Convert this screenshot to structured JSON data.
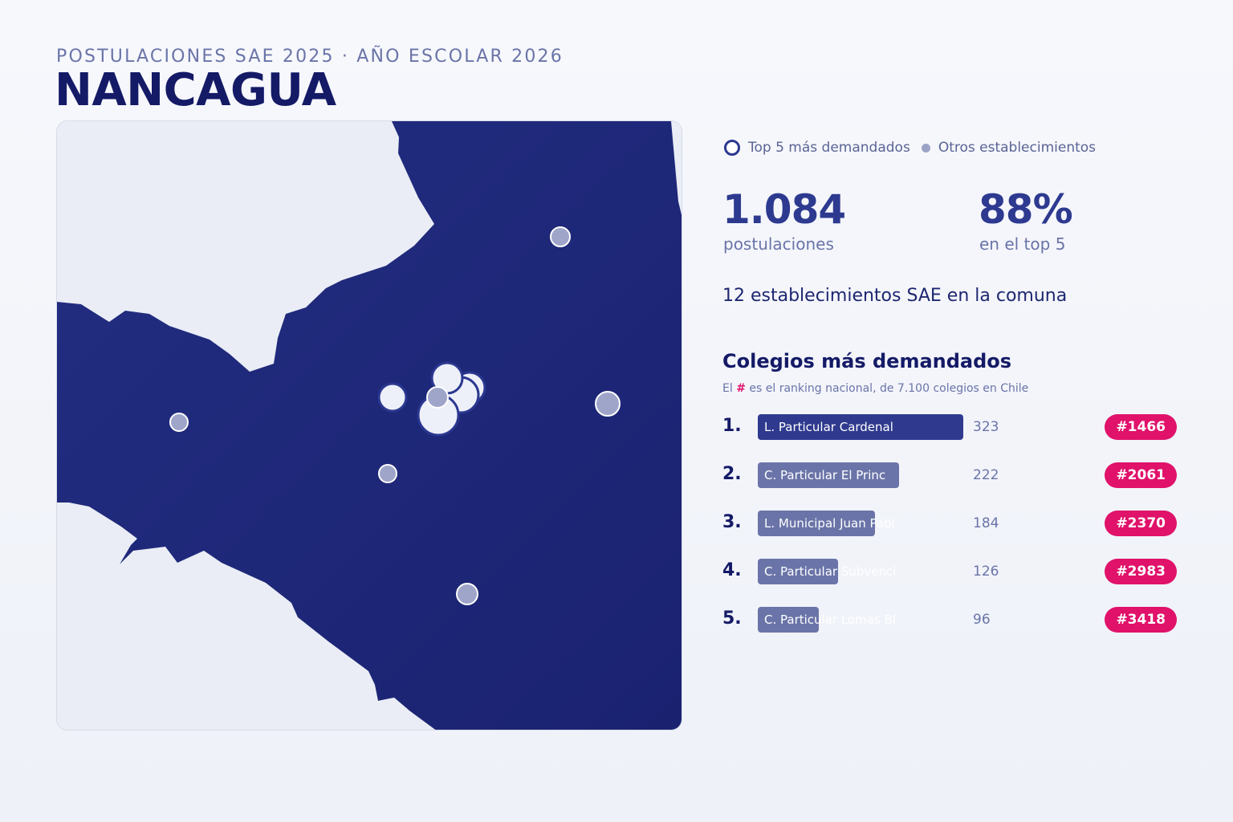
{
  "header": {
    "subtitle": "POSTULACIONES SAE 2025 · AÑO ESCOLAR 2026",
    "title": "NANCAGUA"
  },
  "legend": {
    "top5_label": "Top 5 más demandados",
    "others_label": "Otros establecimientos"
  },
  "stats": {
    "applications_value": "1.084",
    "applications_label": "postulaciones",
    "top5_share_value": "88%",
    "top5_share_label": "en el top 5",
    "schools_line": "12 establecimientos SAE en la comuna"
  },
  "ranking": {
    "title": "Colegios más demandados",
    "note_prefix": "El",
    "note_hash": "#",
    "note_suffix": "es el ranking nacional, de 7.100 colegios en Chile",
    "max_value": 323,
    "items": [
      {
        "rank": "1.",
        "name": "L. Particular Cardenal",
        "value": 323,
        "value_label": "323",
        "national_rank": "#1466"
      },
      {
        "rank": "2.",
        "name": "C. Particular El Princ",
        "value": 222,
        "value_label": "222",
        "national_rank": "#2061"
      },
      {
        "rank": "3.",
        "name": "L. Municipal Juan Pabl",
        "value": 184,
        "value_label": "184",
        "national_rank": "#2370"
      },
      {
        "rank": "4.",
        "name": "C. Particular Subvenci",
        "value": 126,
        "value_label": "126",
        "national_rank": "#2983"
      },
      {
        "rank": "5.",
        "name": "C. Particular Lomas Bl",
        "value": 96,
        "value_label": "96",
        "national_rank": "#3418"
      }
    ]
  },
  "colors": {
    "commune_fill": "#1e2778",
    "background_land": "#eaedf5",
    "accent": "#e0126a",
    "bar_top": "#2f3a8e",
    "bar_other": "#6a74a8"
  }
}
